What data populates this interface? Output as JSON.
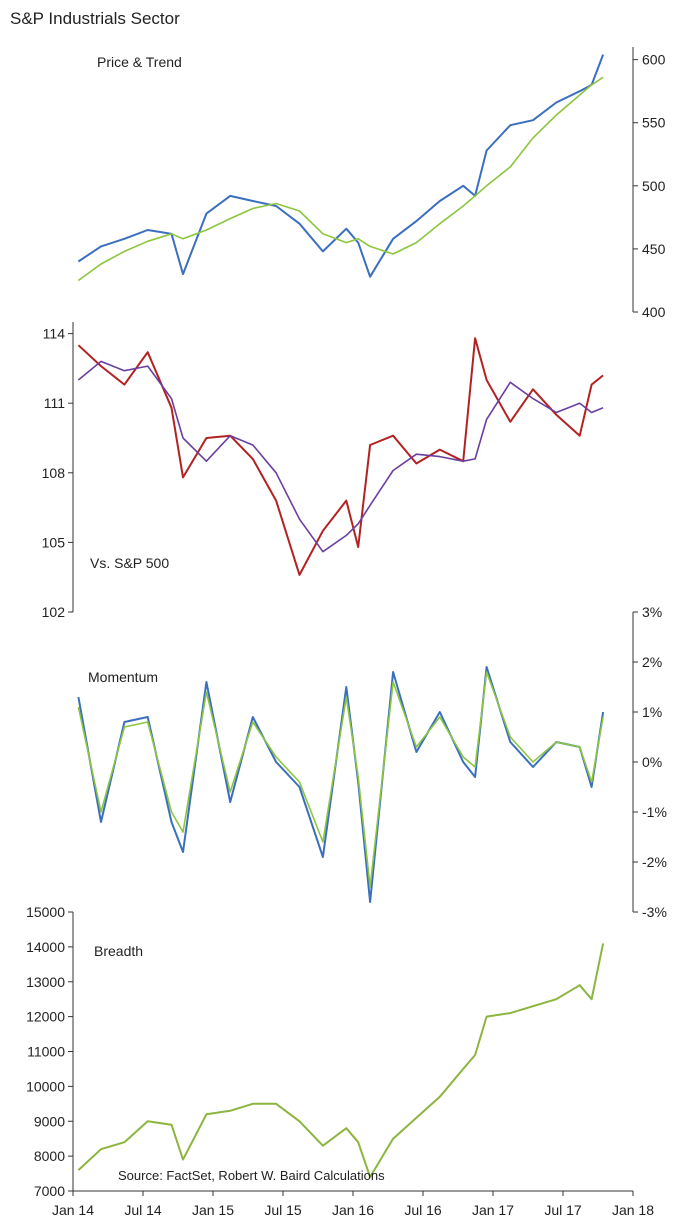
{
  "title": "S&P Industrials Sector",
  "source": "Source: FactSet, Robert W. Baird Calculations",
  "colors": {
    "price": "#3a6fbf",
    "trend": "#8cc63f",
    "relative": "#b22222",
    "relative_trend": "#6a3fa0",
    "momentum_fast": "#3a6fbf",
    "momentum_slow": "#8cc63f",
    "breadth": "#8cb53f",
    "axis": "#333333"
  },
  "chart_data": [
    {
      "type": "line",
      "name": "price-and-trend",
      "title": "Price & Trend",
      "axis_side": "right",
      "ylim": [
        400,
        610
      ],
      "yticks": [
        400,
        450,
        500,
        550,
        600
      ],
      "x": [
        "2014-01",
        "2014-03",
        "2014-05",
        "2014-07",
        "2014-09",
        "2014-10",
        "2014-12",
        "2015-02",
        "2015-04",
        "2015-06",
        "2015-08",
        "2015-10",
        "2015-12",
        "2016-01",
        "2016-02",
        "2016-04",
        "2016-06",
        "2016-08",
        "2016-10",
        "2016-11",
        "2016-12",
        "2017-02",
        "2017-04",
        "2017-06",
        "2017-08",
        "2017-09",
        "2017-10"
      ],
      "series": [
        {
          "name": "Price",
          "values": [
            440,
            452,
            458,
            465,
            462,
            430,
            478,
            492,
            488,
            484,
            470,
            448,
            466,
            455,
            428,
            458,
            472,
            488,
            500,
            492,
            528,
            548,
            552,
            566,
            575,
            580,
            604
          ]
        },
        {
          "name": "Trend",
          "values": [
            425,
            438,
            448,
            456,
            462,
            458,
            465,
            474,
            482,
            486,
            480,
            462,
            455,
            458,
            452,
            446,
            455,
            470,
            484,
            492,
            500,
            515,
            538,
            556,
            572,
            580,
            586
          ]
        }
      ]
    },
    {
      "type": "line",
      "name": "relative-strength",
      "title": "Vs. S&P 500",
      "axis_side": "left",
      "ylim": [
        102,
        114.5
      ],
      "yticks": [
        102,
        105,
        108,
        111,
        114
      ],
      "x": [
        "2014-01",
        "2014-03",
        "2014-05",
        "2014-07",
        "2014-09",
        "2014-10",
        "2014-12",
        "2015-02",
        "2015-04",
        "2015-06",
        "2015-08",
        "2015-10",
        "2015-12",
        "2016-01",
        "2016-02",
        "2016-04",
        "2016-06",
        "2016-08",
        "2016-10",
        "2016-11",
        "2016-12",
        "2017-02",
        "2017-04",
        "2017-06",
        "2017-08",
        "2017-09",
        "2017-10"
      ],
      "series": [
        {
          "name": "Vs. S&P 500",
          "values": [
            113.5,
            112.6,
            111.8,
            113.2,
            110.8,
            107.8,
            109.5,
            109.6,
            108.6,
            106.8,
            103.6,
            105.5,
            106.8,
            104.8,
            109.2,
            109.6,
            108.4,
            109.0,
            108.5,
            113.8,
            112.0,
            110.2,
            111.6,
            110.5,
            109.6,
            111.8,
            112.2
          ]
        },
        {
          "name": "Trend",
          "values": [
            112.0,
            112.8,
            112.4,
            112.6,
            111.2,
            109.5,
            108.5,
            109.6,
            109.2,
            108.0,
            106.0,
            104.6,
            105.3,
            105.8,
            106.6,
            108.1,
            108.8,
            108.7,
            108.5,
            108.6,
            110.3,
            111.9,
            111.2,
            110.6,
            111.0,
            110.6,
            110.8
          ]
        }
      ]
    },
    {
      "type": "line",
      "name": "momentum",
      "title": "Momentum",
      "axis_side": "right",
      "ylim": [
        -3,
        3
      ],
      "yticks": [
        3,
        2,
        1,
        0,
        -1,
        -2,
        -3
      ],
      "ytick_labels": [
        "3%",
        "2%",
        "1%",
        "0%",
        "-1%",
        "-2%",
        "-3%"
      ],
      "x": [
        "2014-01",
        "2014-03",
        "2014-05",
        "2014-07",
        "2014-09",
        "2014-10",
        "2014-12",
        "2015-02",
        "2015-04",
        "2015-06",
        "2015-08",
        "2015-10",
        "2015-12",
        "2016-01",
        "2016-02",
        "2016-04",
        "2016-06",
        "2016-08",
        "2016-10",
        "2016-11",
        "2016-12",
        "2017-02",
        "2017-04",
        "2017-06",
        "2017-08",
        "2017-09",
        "2017-10"
      ],
      "series": [
        {
          "name": "Momentum (fast)",
          "values": [
            1.3,
            -1.2,
            0.8,
            0.9,
            -1.2,
            -1.8,
            1.6,
            -0.8,
            0.9,
            0.0,
            -0.5,
            -1.9,
            1.5,
            -0.4,
            -2.8,
            1.8,
            0.2,
            1.0,
            0.0,
            -0.3,
            1.9,
            0.4,
            -0.1,
            0.4,
            0.3,
            -0.5,
            1.0
          ]
        },
        {
          "name": "Momentum (slow)",
          "values": [
            1.1,
            -1.0,
            0.7,
            0.8,
            -1.0,
            -1.4,
            1.4,
            -0.6,
            0.8,
            0.1,
            -0.4,
            -1.6,
            1.3,
            -0.3,
            -2.5,
            1.6,
            0.3,
            0.9,
            0.1,
            -0.1,
            1.8,
            0.5,
            0.0,
            0.4,
            0.3,
            -0.4,
            0.9
          ]
        }
      ]
    },
    {
      "type": "line",
      "name": "breadth",
      "title": "Breadth",
      "axis_side": "left",
      "ylim": [
        7000,
        15000
      ],
      "yticks": [
        7000,
        8000,
        9000,
        10000,
        11000,
        12000,
        13000,
        14000,
        15000
      ],
      "x": [
        "2014-01",
        "2014-03",
        "2014-05",
        "2014-07",
        "2014-09",
        "2014-10",
        "2014-12",
        "2015-02",
        "2015-04",
        "2015-06",
        "2015-08",
        "2015-10",
        "2015-12",
        "2016-01",
        "2016-02",
        "2016-04",
        "2016-06",
        "2016-08",
        "2016-10",
        "2016-11",
        "2016-12",
        "2017-02",
        "2017-04",
        "2017-06",
        "2017-08",
        "2017-09",
        "2017-10"
      ],
      "series": [
        {
          "name": "Breadth",
          "values": [
            7600,
            8200,
            8400,
            9000,
            8900,
            7900,
            9200,
            9300,
            9500,
            9500,
            9000,
            8300,
            8800,
            8400,
            7400,
            8500,
            9100,
            9700,
            10500,
            10900,
            12000,
            12100,
            12300,
            12500,
            12900,
            12500,
            14100
          ]
        }
      ]
    }
  ],
  "x_axis": {
    "labels": [
      "Jan 14",
      "Jul 14",
      "Jan 15",
      "Jul 15",
      "Jan 16",
      "Jul 16",
      "Jan 17",
      "Jul 17",
      "Jan 18"
    ]
  }
}
